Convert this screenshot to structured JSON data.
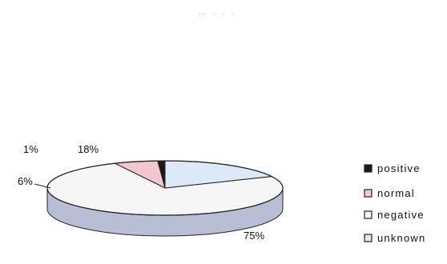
{
  "chart_data": {
    "type": "pie",
    "title": "",
    "top_faint_text": "·· · ·  ·",
    "categories": [
      "positive",
      "normal",
      "negative",
      "unknown"
    ],
    "values": [
      1,
      6,
      75,
      18
    ],
    "value_labels": [
      "1%",
      "6%",
      "75%",
      "18%"
    ],
    "colors": {
      "positive": "#1a1a1a",
      "normal": "#f2c7cf",
      "negative": "#f6f6f6",
      "unknown": "#dce9f6",
      "side_shade": "#b9bed7",
      "outline": "#222222"
    },
    "legend": {
      "position": "right",
      "items": [
        "positive",
        "normal",
        "negative",
        "unknown"
      ]
    },
    "style": "3d-tilted"
  }
}
